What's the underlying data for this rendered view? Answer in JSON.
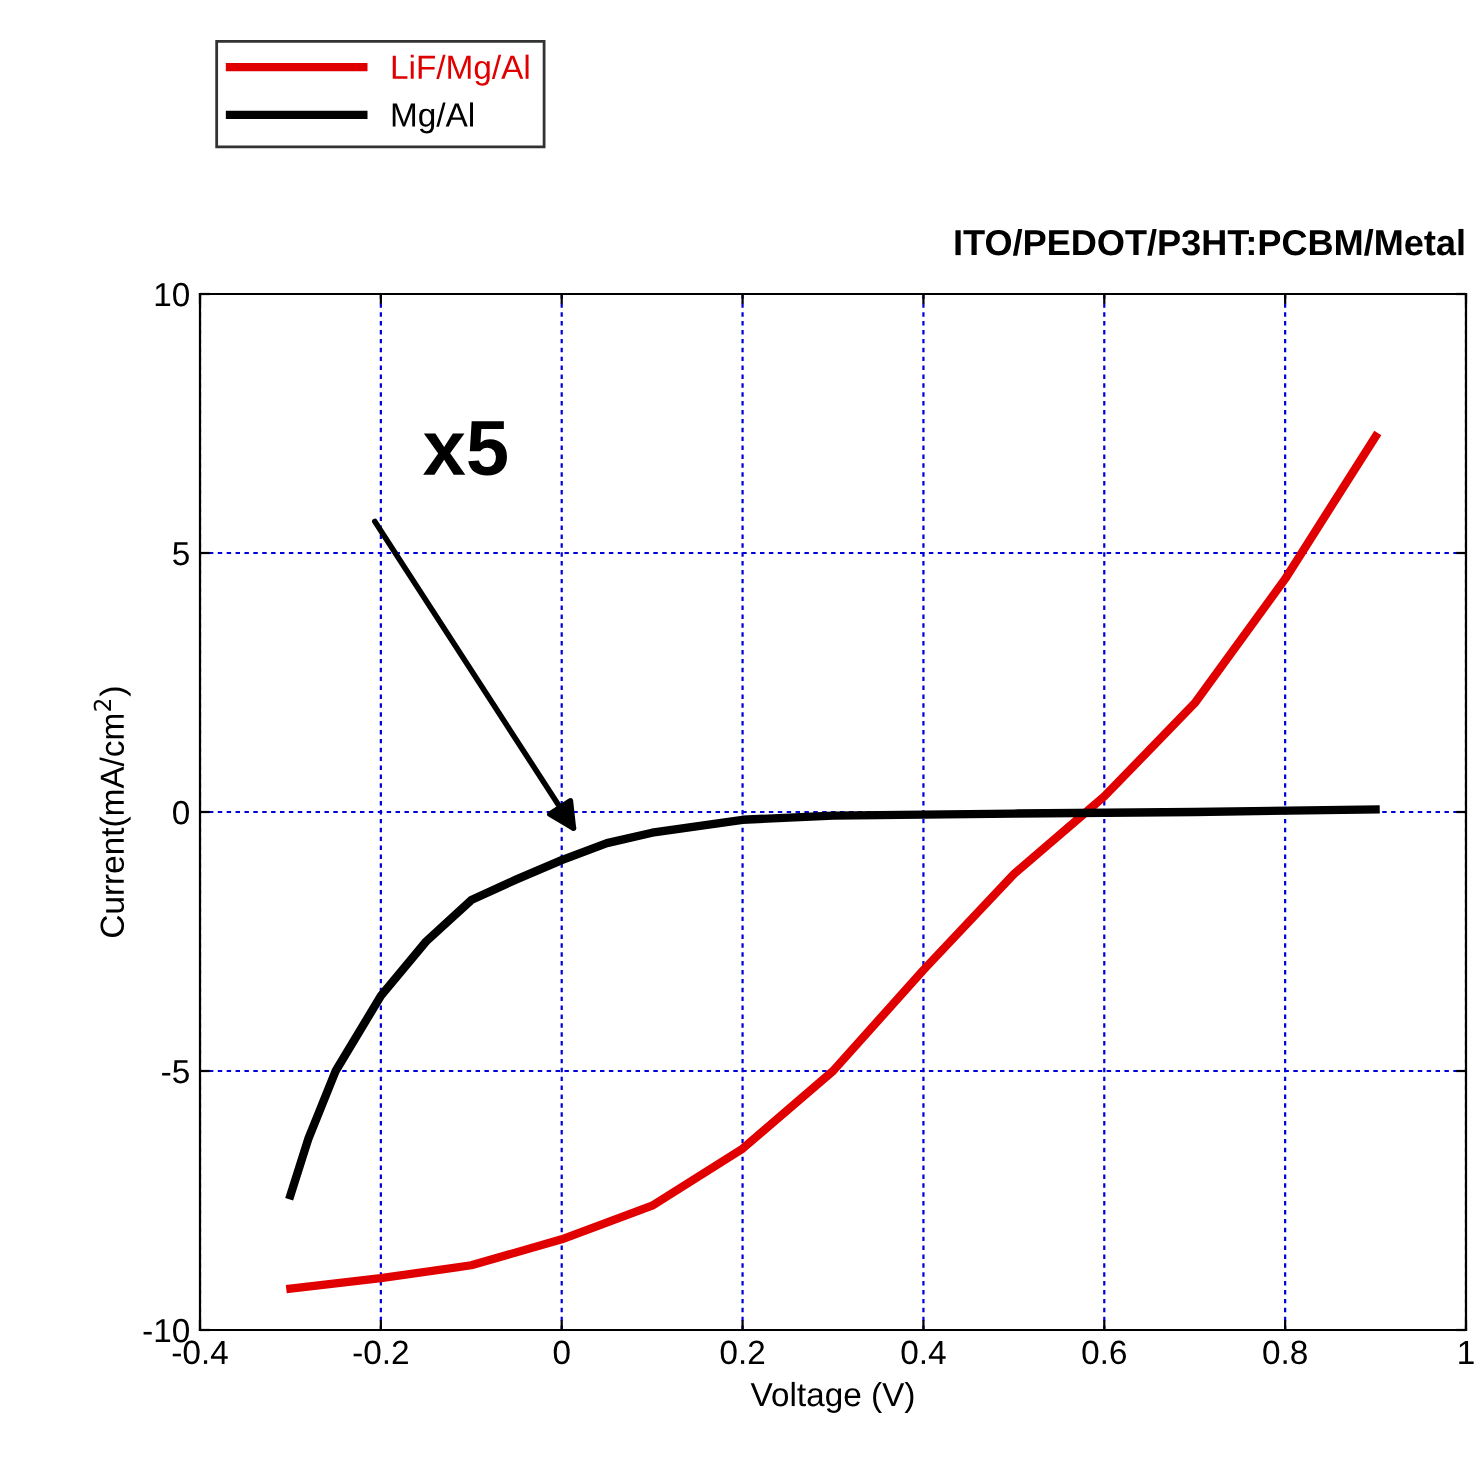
{
  "chart_data": {
    "type": "line",
    "title": "ITO/PEDOT/P3HT:PCBM/Metal",
    "xlabel": "Voltage (V)",
    "ylabel": "Current(mA/cm$^{2}$)",
    "series": [
      {
        "name": "LiF/Mg/Al",
        "color": "#e00000",
        "x": [
          -0.3,
          -0.2,
          -0.1,
          0,
          0.1,
          0.2,
          0.3,
          0.4,
          0.5,
          0.58,
          0.6,
          0.7,
          0.8,
          0.9
        ],
        "values": [
          -9.2,
          -9.0,
          -8.75,
          -8.25,
          -7.6,
          -6.5,
          -5.0,
          -3.05,
          -1.2,
          0,
          0.3,
          2.1,
          4.5,
          7.25
        ]
      },
      {
        "name": "Mg/Al",
        "color": "#000000",
        "x": [
          -0.3,
          -0.28,
          -0.25,
          -0.2,
          -0.15,
          -0.1,
          -0.05,
          0,
          0.05,
          0.1,
          0.2,
          0.3,
          0.5,
          0.7,
          0.9
        ],
        "values": [
          -7.4,
          -6.3,
          -5.0,
          -3.55,
          -2.5,
          -1.7,
          -1.3,
          -0.93,
          -0.6,
          -0.4,
          -0.15,
          -0.07,
          -0.03,
          0,
          0.05
        ]
      }
    ],
    "xlim": [
      -0.4,
      1
    ],
    "ylim": [
      -10,
      10
    ],
    "xticks": [
      -0.4,
      -0.2,
      0,
      0.2,
      0.4,
      0.6,
      0.8,
      1
    ],
    "yticks": [
      -10,
      -5,
      0,
      5,
      10
    ],
    "annotations": [
      "x5"
    ],
    "grid": true,
    "legend": "top left",
    "line_style": "solid",
    "marker": "none"
  }
}
